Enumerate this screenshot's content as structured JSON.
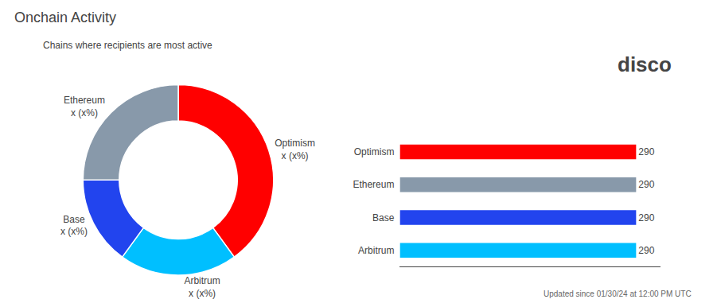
{
  "chart_data": [
    {
      "type": "pie",
      "title": "Onchain Activity",
      "subtitle": "Chains where recipients are most active",
      "categories": [
        "Optimism",
        "Arbitrum",
        "Base",
        "Ethereum"
      ],
      "values": [
        40,
        20,
        15,
        25
      ],
      "value_labels": [
        "Optimism\nx (x%)",
        "Arbitrum\nx (x%)",
        "Base\nx (x%)",
        "Ethereum\nx (x%)"
      ],
      "colors": [
        "#ff0000",
        "#00bfff",
        "#2244ee",
        "#8899aa"
      ]
    },
    {
      "type": "bar",
      "orientation": "horizontal",
      "categories": [
        "Optimism",
        "Ethereum",
        "Base",
        "Arbitrum"
      ],
      "values": [
        290,
        290,
        290,
        290
      ],
      "colors": [
        "#ff0000",
        "#8899aa",
        "#2244ee",
        "#00bfff"
      ],
      "xlim": [
        0,
        320
      ],
      "data_labels": true,
      "tick_labels": "y",
      "grid": false,
      "annotations": [
        "disco",
        "Updated since 01/30/24 at 12:00 PM UTC"
      ]
    }
  ]
}
